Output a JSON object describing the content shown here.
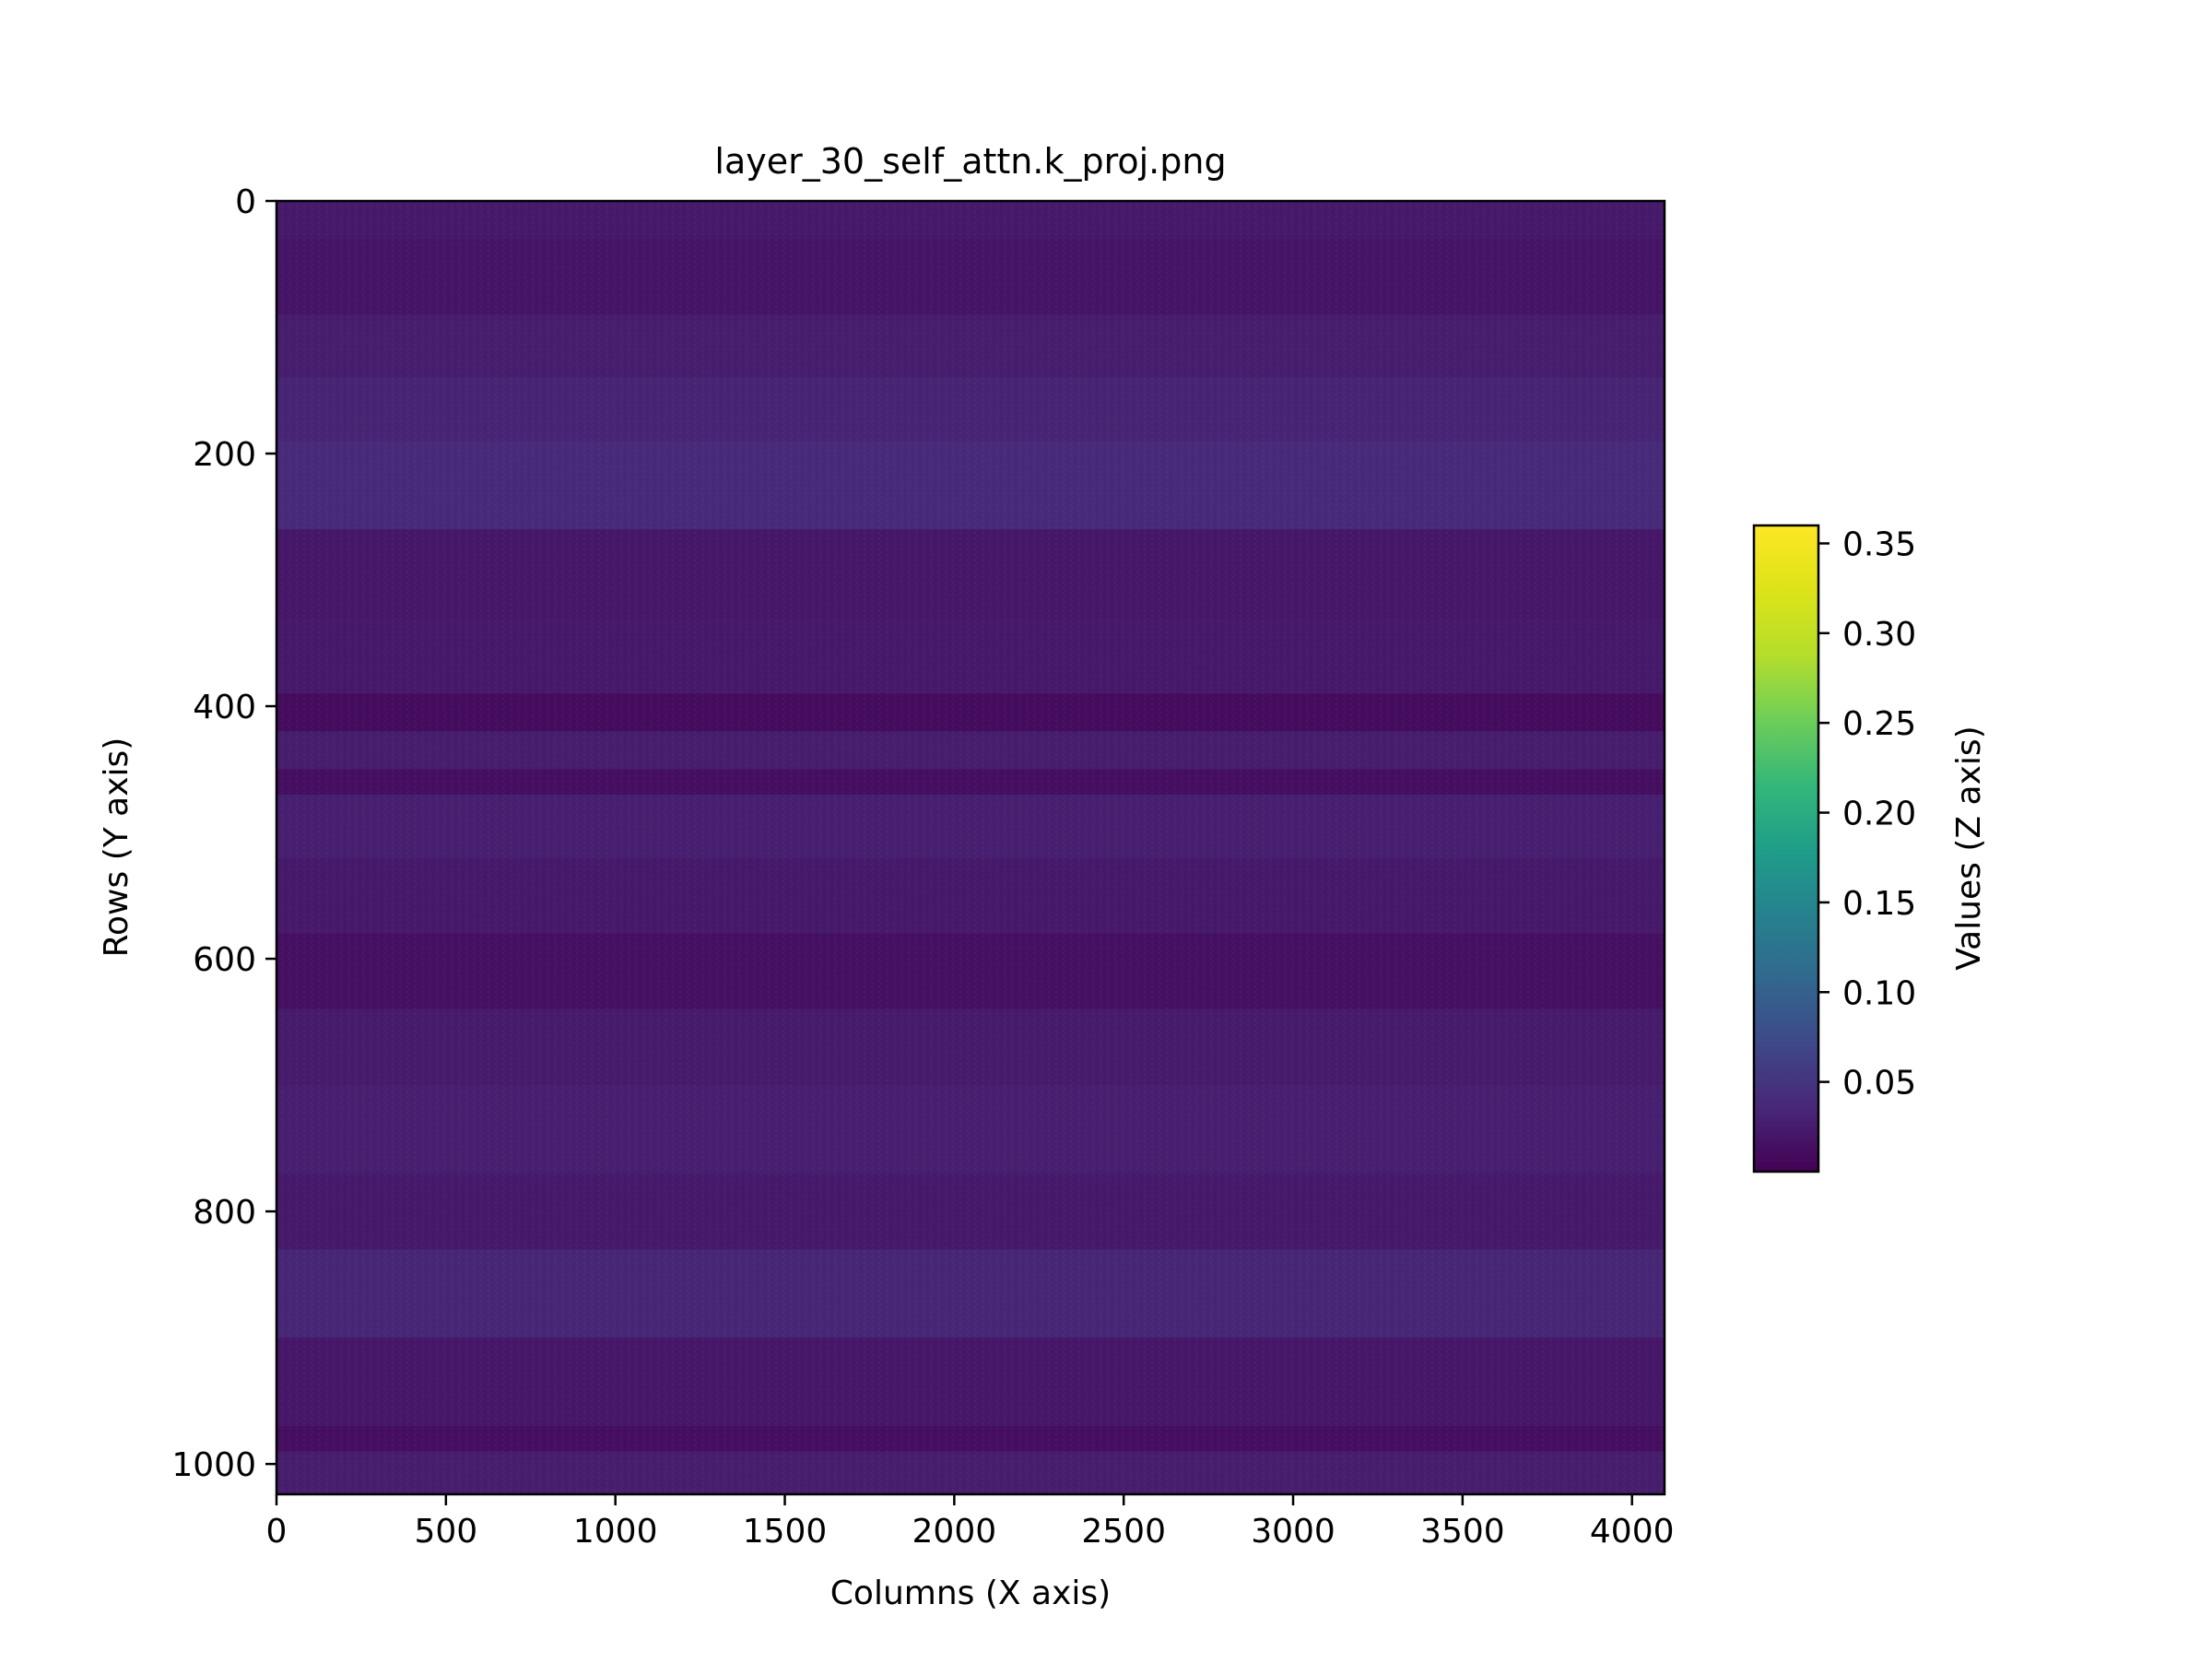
{
  "chart_data": {
    "type": "heatmap",
    "title": "layer_30_self_attn.k_proj.png",
    "xlabel": "Columns (X axis)",
    "ylabel": "Rows (Y axis)",
    "colorbar_label": "Values (Z axis)",
    "colormap": "viridis",
    "xlim": [
      0,
      4096
    ],
    "ylim": [
      1024,
      0
    ],
    "x_ticks": [
      0,
      500,
      1000,
      1500,
      2000,
      2500,
      3000,
      3500,
      4000
    ],
    "y_ticks": [
      0,
      200,
      400,
      600,
      800,
      1000
    ],
    "colorbar_range": [
      0.0,
      0.36
    ],
    "colorbar_ticks": [
      0.05,
      0.1,
      0.15,
      0.2,
      0.25,
      0.3,
      0.35
    ],
    "colorbar_tick_labels": [
      "0.05",
      "0.10",
      "0.15",
      "0.20",
      "0.25",
      "0.30",
      "0.35"
    ],
    "row_bands": [
      {
        "rows": [
          0,
          30
        ],
        "value": 0.022
      },
      {
        "rows": [
          30,
          90
        ],
        "value": 0.018
      },
      {
        "rows": [
          90,
          140
        ],
        "value": 0.026
      },
      {
        "rows": [
          140,
          190
        ],
        "value": 0.032
      },
      {
        "rows": [
          190,
          260
        ],
        "value": 0.038
      },
      {
        "rows": [
          260,
          330
        ],
        "value": 0.02
      },
      {
        "rows": [
          330,
          390
        ],
        "value": 0.022
      },
      {
        "rows": [
          390,
          420
        ],
        "value": 0.01
      },
      {
        "rows": [
          420,
          450
        ],
        "value": 0.026
      },
      {
        "rows": [
          450,
          470
        ],
        "value": 0.012
      },
      {
        "rows": [
          470,
          520
        ],
        "value": 0.028
      },
      {
        "rows": [
          520,
          580
        ],
        "value": 0.022
      },
      {
        "rows": [
          580,
          640
        ],
        "value": 0.014
      },
      {
        "rows": [
          640,
          700
        ],
        "value": 0.024
      },
      {
        "rows": [
          700,
          770
        ],
        "value": 0.028
      },
      {
        "rows": [
          770,
          830
        ],
        "value": 0.022
      },
      {
        "rows": [
          830,
          900
        ],
        "value": 0.034
      },
      {
        "rows": [
          900,
          970
        ],
        "value": 0.02
      },
      {
        "rows": [
          970,
          990
        ],
        "value": 0.012
      },
      {
        "rows": [
          990,
          1024
        ],
        "value": 0.026
      }
    ]
  }
}
